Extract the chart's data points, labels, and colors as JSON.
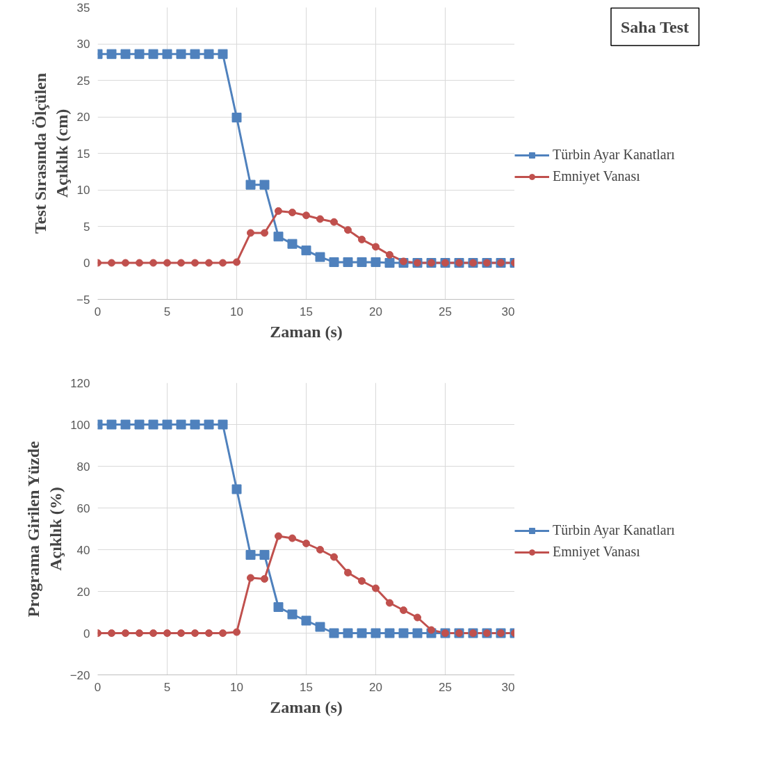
{
  "chart_data": [
    {
      "type": "line",
      "xlabel": "Zaman (s)",
      "ylabel": "Test Sırasında Ölçülen\nAçıklık (cm)",
      "annotations": [
        "Saha Test"
      ],
      "x": [
        0,
        1,
        2,
        3,
        4,
        5,
        6,
        7,
        8,
        9,
        10,
        11,
        12,
        13,
        14,
        15,
        16,
        17,
        18,
        19,
        20,
        21,
        22,
        23,
        24,
        25,
        26,
        27,
        28,
        29,
        30
      ],
      "series": [
        {
          "name": "Türbin Ayar Kanatları",
          "color": "#4f81bd",
          "marker": "square",
          "values": [
            28.6,
            28.6,
            28.6,
            28.6,
            28.6,
            28.6,
            28.6,
            28.6,
            28.6,
            28.6,
            19.9,
            10.7,
            10.7,
            3.6,
            2.6,
            1.7,
            0.8,
            0.1,
            0.1,
            0.1,
            0.1,
            0,
            0,
            0,
            0,
            0,
            0,
            0,
            0,
            0,
            0
          ]
        },
        {
          "name": "Emniyet Vanası",
          "color": "#c0504d",
          "marker": "circle",
          "values": [
            0,
            0,
            0,
            0,
            0,
            0,
            0,
            0,
            0,
            0,
            0.1,
            4.1,
            4.1,
            7.1,
            6.9,
            6.5,
            6.0,
            5.6,
            4.5,
            3.2,
            2.2,
            1.1,
            0.2,
            0,
            0,
            0,
            0,
            0,
            0,
            0,
            0
          ]
        }
      ],
      "xlim": [
        0,
        30
      ],
      "xticks": [
        0,
        5,
        10,
        15,
        20,
        25,
        30
      ],
      "ylim": [
        -5,
        35
      ],
      "yticks": [
        -5,
        0,
        5,
        10,
        15,
        20,
        25,
        30,
        35
      ],
      "grid": true,
      "legend": "right",
      "line_style": "solid"
    },
    {
      "type": "line",
      "xlabel": "Zaman (s)",
      "ylabel": "Programa Girilen Yüzde\nAçıklık (%)",
      "x": [
        0,
        1,
        2,
        3,
        4,
        5,
        6,
        7,
        8,
        9,
        10,
        11,
        12,
        13,
        14,
        15,
        16,
        17,
        18,
        19,
        20,
        21,
        22,
        23,
        24,
        25,
        26,
        27,
        28,
        29,
        30
      ],
      "series": [
        {
          "name": "Türbin Ayar Kanatları",
          "color": "#4f81bd",
          "marker": "square",
          "values": [
            100,
            100,
            100,
            100,
            100,
            100,
            100,
            100,
            100,
            100,
            69,
            37.5,
            37.5,
            12.5,
            9,
            6,
            3,
            0,
            0,
            0,
            0,
            0,
            0,
            0,
            0,
            0,
            0,
            0,
            0,
            0,
            0
          ]
        },
        {
          "name": "Emniyet Vanası",
          "color": "#c0504d",
          "marker": "circle",
          "values": [
            0,
            0,
            0,
            0,
            0,
            0,
            0,
            0,
            0,
            0,
            0.5,
            26.5,
            26,
            46.5,
            45.5,
            43,
            40,
            36.5,
            29,
            25,
            21.5,
            14.5,
            11,
            7.5,
            1.5,
            0,
            0,
            0,
            0,
            0,
            0
          ]
        }
      ],
      "xlim": [
        0,
        30
      ],
      "xticks": [
        0,
        5,
        10,
        15,
        20,
        25,
        30
      ],
      "ylim": [
        -20,
        120
      ],
      "yticks": [
        -20,
        0,
        20,
        40,
        60,
        80,
        100,
        120
      ],
      "grid": true,
      "legend": "right",
      "line_style": "solid"
    }
  ]
}
